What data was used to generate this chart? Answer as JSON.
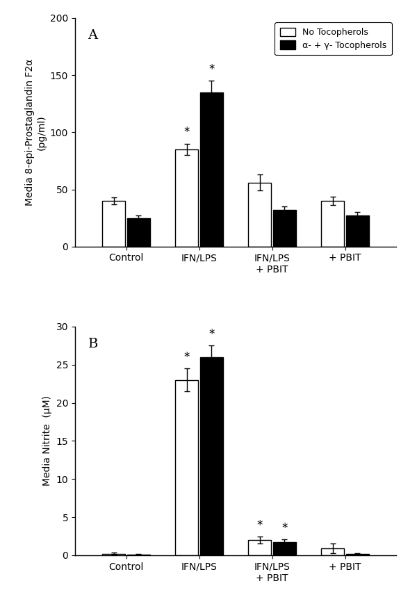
{
  "panel_A": {
    "title": "A",
    "ylabel": "Media 8-epi-Prostaglandin F2α\n(pg/ml)",
    "ylim": [
      0,
      200
    ],
    "yticks": [
      0,
      50,
      100,
      150,
      200
    ],
    "categories": [
      "Control",
      "IFN/LPS",
      "IFN/LPS\n+ PBIT",
      "+ PBIT"
    ],
    "white_bars": [
      40,
      85,
      56,
      40
    ],
    "black_bars": [
      25,
      135,
      32,
      27
    ],
    "white_errors": [
      3,
      5,
      7,
      3.5
    ],
    "black_errors": [
      2,
      10,
      3,
      3
    ],
    "star_white": [
      false,
      true,
      false,
      false
    ],
    "star_black": [
      false,
      true,
      false,
      false
    ]
  },
  "panel_B": {
    "title": "B",
    "ylabel": "Media Nitrite  (μM)",
    "ylim": [
      0,
      30
    ],
    "yticks": [
      0,
      5,
      10,
      15,
      20,
      25,
      30
    ],
    "categories": [
      "Control",
      "IFN/LPS",
      "IFN/LPS\n+ PBIT",
      "+ PBIT"
    ],
    "white_bars": [
      0.2,
      23,
      2.0,
      0.9
    ],
    "black_bars": [
      0.1,
      26,
      1.7,
      0.15
    ],
    "white_errors": [
      0.12,
      1.5,
      0.45,
      0.65
    ],
    "black_errors": [
      0.08,
      1.5,
      0.35,
      0.1
    ],
    "star_white": [
      false,
      true,
      true,
      false
    ],
    "star_black": [
      false,
      true,
      true,
      false
    ]
  },
  "legend_labels": [
    "No Tocopherols",
    "α- + γ- Tocopherols"
  ],
  "bar_width": 0.32,
  "white_color": "#ffffff",
  "black_color": "#000000",
  "edge_color": "#000000",
  "background_color": "#ffffff"
}
